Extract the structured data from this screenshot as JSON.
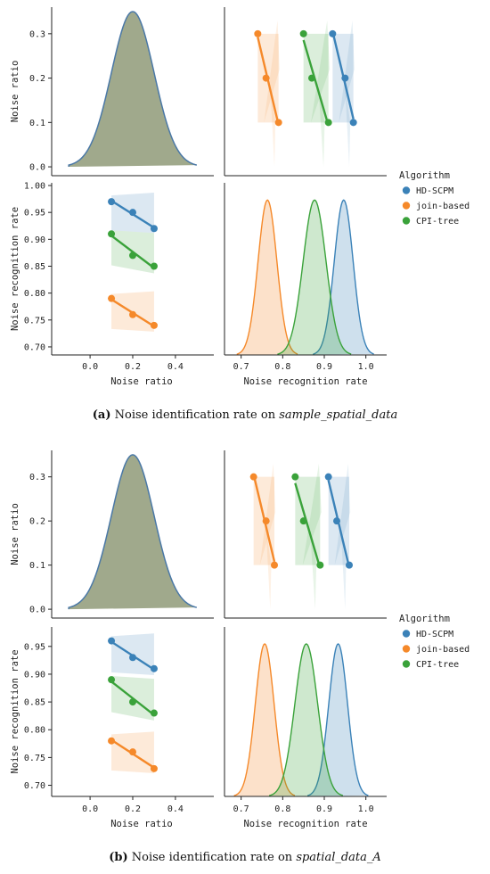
{
  "colors": {
    "HD-SCPM": "#3b82b8",
    "join-based": "#f5892a",
    "CPI-tree": "#3aa23a",
    "kde_noise": "#8f9a78",
    "kde_noise_line": "#4a78a6"
  },
  "figures": [
    {
      "caption": {
        "label": "(a)",
        "text": " Noise identification rate on ",
        "dataset": "sample_spatial_data"
      },
      "legend": {
        "title": "Algorithm",
        "items": [
          "HD-SCPM",
          "join-based",
          "CPI-tree"
        ]
      },
      "axis_labels": {
        "noise_ratio": "Noise ratio",
        "recognition": "Noise recognition rate"
      },
      "ticks": {
        "noise_y": [
          "0.3",
          "0.2",
          "0.1",
          "0.0"
        ],
        "noise_x": [
          "0.0",
          "0.2",
          "0.4"
        ],
        "rate_y": [
          "1.00",
          "0.95",
          "0.90",
          "0.85",
          "0.80",
          "0.75",
          "0.70"
        ],
        "rate_x": [
          "0.7",
          "0.8",
          "0.9",
          "1.0"
        ]
      }
    },
    {
      "caption": {
        "label": "(b)",
        "text": " Noise identification rate on ",
        "dataset": "spatial_data_A"
      },
      "legend": {
        "title": "Algorithm",
        "items": [
          "HD-SCPM",
          "join-based",
          "CPI-tree"
        ]
      },
      "axis_labels": {
        "noise_ratio": "Noise ratio",
        "recognition": "Noise recognition rate"
      },
      "ticks": {
        "noise_y": [
          "0.3",
          "0.2",
          "0.1",
          "0.0"
        ],
        "noise_x": [
          "0.0",
          "0.2",
          "0.4"
        ],
        "rate_y": [
          "0.95",
          "0.90",
          "0.85",
          "0.80",
          "0.75",
          "0.70"
        ],
        "rate_x": [
          "0.7",
          "0.8",
          "0.9",
          "1.0"
        ]
      }
    }
  ],
  "chart_data": [
    {
      "type": "scatter",
      "kind": "pairplot",
      "legend_title": "Algorithm",
      "noise_ratio_range": [
        -0.02,
        0.36
      ],
      "noise_x_range": [
        -0.18,
        0.58
      ],
      "rate_range": [
        0.685,
        1.005
      ],
      "rate_x_range": [
        0.66,
        1.05
      ],
      "noise_ratio": [
        0.1,
        0.2,
        0.3
      ],
      "series": [
        {
          "name": "HD-SCPM",
          "rate": [
            0.97,
            0.95,
            0.92
          ]
        },
        {
          "name": "join-based",
          "rate": [
            0.79,
            0.76,
            0.74
          ]
        },
        {
          "name": "CPI-tree",
          "rate": [
            0.91,
            0.87,
            0.85
          ]
        }
      ]
    },
    {
      "type": "scatter",
      "kind": "pairplot",
      "legend_title": "Algorithm",
      "noise_ratio_range": [
        -0.02,
        0.36
      ],
      "noise_x_range": [
        -0.18,
        0.58
      ],
      "rate_range": [
        0.68,
        0.985
      ],
      "rate_x_range": [
        0.66,
        1.05
      ],
      "noise_ratio": [
        0.1,
        0.2,
        0.3
      ],
      "series": [
        {
          "name": "HD-SCPM",
          "rate": [
            0.96,
            0.93,
            0.91
          ]
        },
        {
          "name": "join-based",
          "rate": [
            0.78,
            0.76,
            0.73
          ]
        },
        {
          "name": "CPI-tree",
          "rate": [
            0.89,
            0.85,
            0.83
          ]
        }
      ]
    }
  ]
}
